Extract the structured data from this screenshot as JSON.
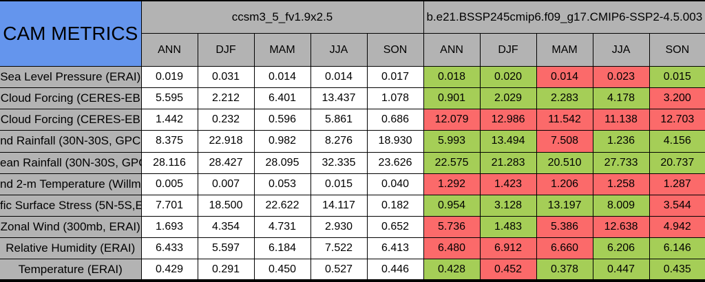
{
  "page": {
    "title": "CAM METRICS"
  },
  "colors": {
    "header_blue": "#6495ED",
    "header_gray": "#B3B3B3",
    "good_green": "#A5CE57",
    "bad_red": "#FB6A6A",
    "plain_cell_white": "#FFFFFF",
    "border_black": "#000000"
  },
  "models": [
    {
      "name": "ccsm3_5_fv1.9x2.5",
      "seasons": [
        "ANN",
        "DJF",
        "MAM",
        "JJA",
        "SON"
      ]
    },
    {
      "name": "b.e21.BSSP245cmip6.f09_g17.CMIP6-SSP2-4.5.003",
      "seasons": [
        "ANN",
        "DJF",
        "MAM",
        "JJA",
        "SON"
      ]
    }
  ],
  "chart_data": {
    "type": "table",
    "title": "CAM METRICS",
    "column_groups": [
      "ccsm3_5_fv1.9x2.5",
      "b.e21.BSSP245cmip6.f09_g17.CMIP6-SSP2-4.5.003"
    ],
    "columns": [
      "ANN",
      "DJF",
      "MAM",
      "JJA",
      "SON"
    ],
    "cell_color_meaning": {
      "green": "lower/better than first model",
      "red": "higher/worse than first model"
    },
    "rows": [
      {
        "label": "Sea Level Pressure (ERAI)",
        "model1": [
          "0.019",
          "0.031",
          "0.014",
          "0.014",
          "0.017"
        ],
        "model2": [
          {
            "value": "0.018",
            "color": "green"
          },
          {
            "value": "0.020",
            "color": "green"
          },
          {
            "value": "0.014",
            "color": "red"
          },
          {
            "value": "0.023",
            "color": "red"
          },
          {
            "value": "0.015",
            "color": "green"
          }
        ]
      },
      {
        "label": "Cloud Forcing (CERES-EB",
        "model1": [
          "5.595",
          "2.212",
          "6.401",
          "13.437",
          "1.078"
        ],
        "model2": [
          {
            "value": "0.901",
            "color": "green"
          },
          {
            "value": "2.029",
            "color": "green"
          },
          {
            "value": "2.283",
            "color": "green"
          },
          {
            "value": "4.178",
            "color": "green"
          },
          {
            "value": "3.200",
            "color": "red"
          }
        ]
      },
      {
        "label": "Cloud Forcing (CERES-EB",
        "model1": [
          "1.442",
          "0.232",
          "0.596",
          "5.861",
          "0.686"
        ],
        "model2": [
          {
            "value": "12.079",
            "color": "red"
          },
          {
            "value": "12.986",
            "color": "red"
          },
          {
            "value": "11.542",
            "color": "red"
          },
          {
            "value": "11.138",
            "color": "red"
          },
          {
            "value": "12.703",
            "color": "red"
          }
        ]
      },
      {
        "label": "nd Rainfall (30N-30S, GPC",
        "model1": [
          "8.375",
          "22.918",
          "0.982",
          "8.276",
          "18.930"
        ],
        "model2": [
          {
            "value": "5.993",
            "color": "green"
          },
          {
            "value": "13.494",
            "color": "green"
          },
          {
            "value": "7.508",
            "color": "red"
          },
          {
            "value": "1.236",
            "color": "green"
          },
          {
            "value": "4.156",
            "color": "green"
          }
        ]
      },
      {
        "label": "ean Rainfall (30N-30S, GPC",
        "model1": [
          "28.116",
          "28.427",
          "28.095",
          "32.335",
          "23.626"
        ],
        "model2": [
          {
            "value": "22.575",
            "color": "green"
          },
          {
            "value": "21.283",
            "color": "green"
          },
          {
            "value": "20.510",
            "color": "green"
          },
          {
            "value": "27.733",
            "color": "green"
          },
          {
            "value": "20.737",
            "color": "green"
          }
        ]
      },
      {
        "label": "nd 2-m Temperature (Willmo",
        "model1": [
          "0.005",
          "0.007",
          "0.053",
          "0.015",
          "0.040"
        ],
        "model2": [
          {
            "value": "1.292",
            "color": "red"
          },
          {
            "value": "1.423",
            "color": "red"
          },
          {
            "value": "1.206",
            "color": "red"
          },
          {
            "value": "1.258",
            "color": "red"
          },
          {
            "value": "1.287",
            "color": "red"
          }
        ]
      },
      {
        "label": "fic Surface Stress (5N-5S,E",
        "model1": [
          "7.701",
          "18.500",
          "22.622",
          "14.117",
          "0.182"
        ],
        "model2": [
          {
            "value": "0.954",
            "color": "green"
          },
          {
            "value": "3.128",
            "color": "green"
          },
          {
            "value": "13.197",
            "color": "green"
          },
          {
            "value": "8.009",
            "color": "green"
          },
          {
            "value": "3.544",
            "color": "red"
          }
        ]
      },
      {
        "label": "Zonal Wind (300mb, ERAI)",
        "model1": [
          "1.693",
          "4.354",
          "4.731",
          "2.930",
          "0.652"
        ],
        "model2": [
          {
            "value": "5.736",
            "color": "red"
          },
          {
            "value": "1.483",
            "color": "green"
          },
          {
            "value": "5.386",
            "color": "red"
          },
          {
            "value": "12.638",
            "color": "red"
          },
          {
            "value": "4.942",
            "color": "red"
          }
        ]
      },
      {
        "label": "Relative Humidity (ERAI)",
        "model1": [
          "6.433",
          "5.597",
          "6.184",
          "7.522",
          "6.413"
        ],
        "model2": [
          {
            "value": "6.480",
            "color": "red"
          },
          {
            "value": "6.912",
            "color": "red"
          },
          {
            "value": "6.660",
            "color": "red"
          },
          {
            "value": "6.206",
            "color": "green"
          },
          {
            "value": "6.146",
            "color": "green"
          }
        ]
      },
      {
        "label": "Temperature (ERAI)",
        "model1": [
          "0.429",
          "0.291",
          "0.450",
          "0.527",
          "0.446"
        ],
        "model2": [
          {
            "value": "0.428",
            "color": "green"
          },
          {
            "value": "0.452",
            "color": "red"
          },
          {
            "value": "0.378",
            "color": "green"
          },
          {
            "value": "0.447",
            "color": "green"
          },
          {
            "value": "0.435",
            "color": "green"
          }
        ]
      }
    ]
  }
}
